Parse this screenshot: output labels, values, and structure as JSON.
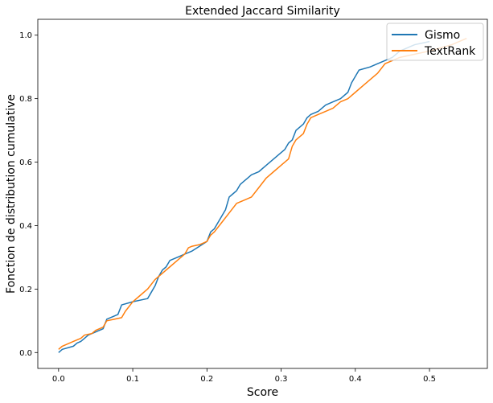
{
  "chart_data": {
    "type": "line",
    "title": "Extended Jaccard Similarity",
    "xlabel": "Score",
    "ylabel": "Fonction de distribution cumulative",
    "xlim": [
      -0.028,
      0.578
    ],
    "ylim": [
      -0.05,
      1.05
    ],
    "xticks": [
      0.0,
      0.1,
      0.2,
      0.3,
      0.4,
      0.5
    ],
    "xtick_labels": [
      "0.0",
      "0.1",
      "0.2",
      "0.3",
      "0.4",
      "0.5"
    ],
    "yticks": [
      0.0,
      0.2,
      0.4,
      0.6,
      0.8,
      1.0
    ],
    "ytick_labels": [
      "0.0",
      "0.2",
      "0.4",
      "0.6",
      "0.8",
      "1.0"
    ],
    "grid": false,
    "legend_position": "top-right",
    "series": [
      {
        "name": "Gismo",
        "color": "#1f77b4",
        "x": [
          0.0,
          0.005,
          0.02,
          0.025,
          0.03,
          0.035,
          0.04,
          0.05,
          0.055,
          0.06,
          0.065,
          0.075,
          0.08,
          0.085,
          0.1,
          0.12,
          0.125,
          0.13,
          0.135,
          0.14,
          0.145,
          0.15,
          0.16,
          0.17,
          0.18,
          0.19,
          0.2,
          0.205,
          0.21,
          0.215,
          0.22,
          0.225,
          0.23,
          0.235,
          0.24,
          0.245,
          0.25,
          0.255,
          0.26,
          0.27,
          0.28,
          0.29,
          0.3,
          0.305,
          0.31,
          0.315,
          0.32,
          0.325,
          0.33,
          0.335,
          0.34,
          0.35,
          0.36,
          0.37,
          0.38,
          0.39,
          0.395,
          0.4,
          0.405,
          0.42,
          0.43,
          0.44,
          0.45,
          0.46,
          0.47,
          0.48,
          0.5
        ],
        "y": [
          0.0,
          0.01,
          0.02,
          0.03,
          0.035,
          0.045,
          0.055,
          0.065,
          0.07,
          0.075,
          0.105,
          0.115,
          0.12,
          0.15,
          0.16,
          0.17,
          0.19,
          0.21,
          0.24,
          0.26,
          0.27,
          0.29,
          0.3,
          0.31,
          0.32,
          0.335,
          0.35,
          0.38,
          0.39,
          0.41,
          0.43,
          0.45,
          0.49,
          0.5,
          0.51,
          0.53,
          0.54,
          0.55,
          0.56,
          0.57,
          0.59,
          0.61,
          0.63,
          0.64,
          0.66,
          0.67,
          0.7,
          0.71,
          0.72,
          0.74,
          0.75,
          0.76,
          0.78,
          0.79,
          0.8,
          0.82,
          0.85,
          0.87,
          0.89,
          0.9,
          0.91,
          0.92,
          0.93,
          0.95,
          0.96,
          0.97,
          0.98
        ]
      },
      {
        "name": "TextRank",
        "color": "#ff7f0e",
        "x": [
          0.0,
          0.005,
          0.02,
          0.03,
          0.035,
          0.045,
          0.05,
          0.06,
          0.065,
          0.075,
          0.085,
          0.09,
          0.1,
          0.11,
          0.12,
          0.13,
          0.14,
          0.15,
          0.16,
          0.17,
          0.175,
          0.18,
          0.19,
          0.2,
          0.205,
          0.21,
          0.22,
          0.23,
          0.24,
          0.25,
          0.26,
          0.27,
          0.28,
          0.29,
          0.3,
          0.31,
          0.315,
          0.32,
          0.33,
          0.335,
          0.34,
          0.35,
          0.36,
          0.37,
          0.38,
          0.39,
          0.4,
          0.41,
          0.42,
          0.43,
          0.44,
          0.45,
          0.46,
          0.48,
          0.5,
          0.53,
          0.55
        ],
        "y": [
          0.01,
          0.02,
          0.035,
          0.045,
          0.055,
          0.06,
          0.07,
          0.08,
          0.1,
          0.105,
          0.11,
          0.13,
          0.16,
          0.18,
          0.2,
          0.23,
          0.25,
          0.27,
          0.29,
          0.31,
          0.33,
          0.335,
          0.34,
          0.35,
          0.37,
          0.38,
          0.41,
          0.44,
          0.47,
          0.48,
          0.49,
          0.52,
          0.55,
          0.57,
          0.59,
          0.61,
          0.65,
          0.67,
          0.69,
          0.72,
          0.74,
          0.75,
          0.76,
          0.77,
          0.79,
          0.8,
          0.82,
          0.84,
          0.86,
          0.88,
          0.91,
          0.92,
          0.93,
          0.94,
          0.95,
          0.97,
          0.99
        ]
      }
    ]
  }
}
